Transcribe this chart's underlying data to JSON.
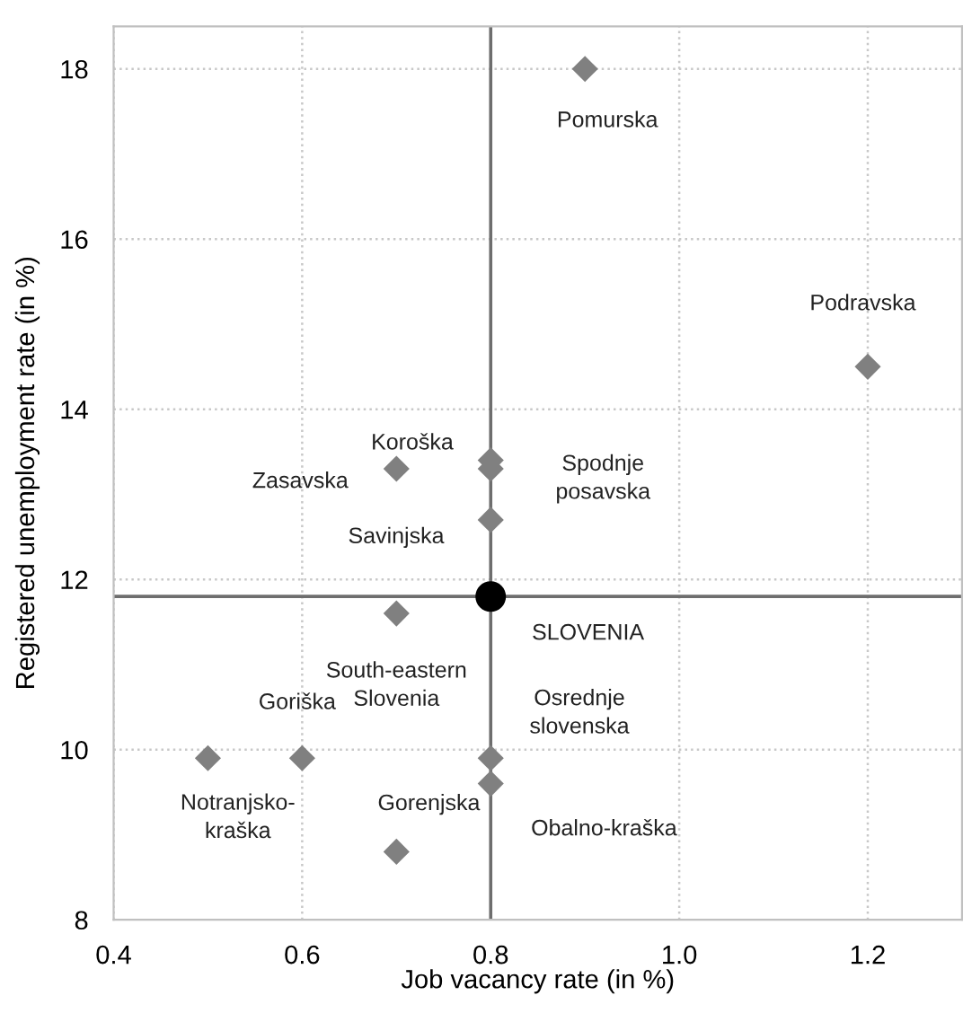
{
  "chart_data": {
    "type": "scatter",
    "xlabel": "Job vacancy rate (in %)",
    "ylabel": "Registered unemployment rate (in %)",
    "xlim": [
      0.4,
      1.3
    ],
    "ylim": [
      8,
      18.5
    ],
    "xticks": [
      {
        "value": 0.4,
        "label": "0.4"
      },
      {
        "value": 0.6,
        "label": "0.6"
      },
      {
        "value": 0.8,
        "label": "0.8"
      },
      {
        "value": 1.0,
        "label": "1.0"
      },
      {
        "value": 1.2,
        "label": "1.2"
      }
    ],
    "yticks": [
      8,
      10,
      12,
      14,
      16,
      18
    ],
    "grid": true,
    "series": [
      {
        "color": "#808080",
        "marker": "diamond",
        "x": [
          0.9,
          1.2,
          0.7,
          0.8,
          0.8,
          0.8,
          0.7,
          0.6,
          0.5,
          0.8,
          0.8,
          0.7
        ],
        "values": [
          18.0,
          14.5,
          13.3,
          13.4,
          13.3,
          12.7,
          11.6,
          9.9,
          9.9,
          9.9,
          9.6,
          8.8
        ]
      },
      {
        "name": "SLOVENIA",
        "color": "#000000",
        "marker": "circle",
        "x": [
          0.8
        ],
        "values": [
          11.8
        ]
      }
    ],
    "ref_lines": [
      {
        "axis": "x",
        "value": 0.8,
        "color": "#6e6e6e"
      },
      {
        "axis": "y",
        "value": 11.8,
        "color": "#6e6e6e"
      }
    ],
    "annotations": [
      {
        "text": "Pomurska",
        "x": 0.9,
        "y": 18.0
      },
      {
        "text": "Podravska",
        "x": 1.2,
        "y": 14.5
      },
      "Zasavska",
      "Koroška",
      {
        "text": "Spodnje\nposavska",
        "x": 0.8,
        "y": 13.3
      },
      "Savinjska",
      {
        "text": "South-eastern\nSlovenia",
        "x": 0.7,
        "y": 11.6
      },
      {
        "text": "Goriška",
        "x": 0.6,
        "y": 9.9
      },
      {
        "text": "Notranjsko-\nkraška",
        "x": 0.5,
        "y": 9.9
      },
      "Osrednje\nslovenska",
      "Obalno-kraška",
      {
        "text": "Gorenjska",
        "x": 0.7,
        "y": 8.8
      }
    ]
  }
}
